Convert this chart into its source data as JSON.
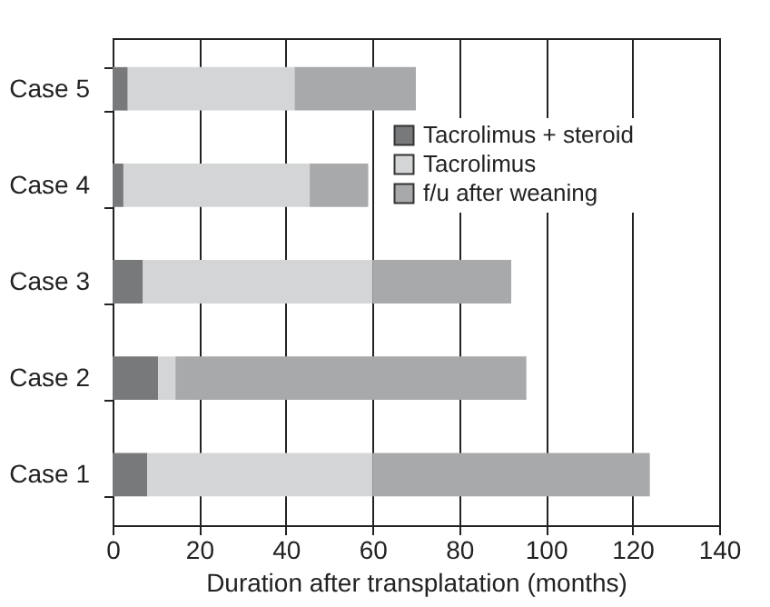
{
  "chart_data": {
    "type": "bar",
    "orientation": "horizontal",
    "stacked": true,
    "categories": [
      "Case 5",
      "Case 4",
      "Case 3",
      "Case 2",
      "Case 1"
    ],
    "series": [
      {
        "name": "Tacrolimus + steroid",
        "color": "#78797b",
        "values": [
          3.5,
          2.5,
          7,
          10.5,
          8
        ]
      },
      {
        "name": "Tacrolimus",
        "color": "#d4d5d6",
        "values": [
          38.5,
          43,
          53,
          4,
          52
        ]
      },
      {
        "name": "f/u after weaning",
        "color": "#a8a9ab",
        "values": [
          28,
          13.5,
          32,
          81,
          64
        ]
      }
    ],
    "xlabel": "Duration after transplatation (months)",
    "xlim": [
      0,
      140
    ],
    "xticks": [
      0,
      20,
      40,
      60,
      80,
      100,
      120,
      140
    ],
    "grid": "x",
    "legend": "top right"
  }
}
